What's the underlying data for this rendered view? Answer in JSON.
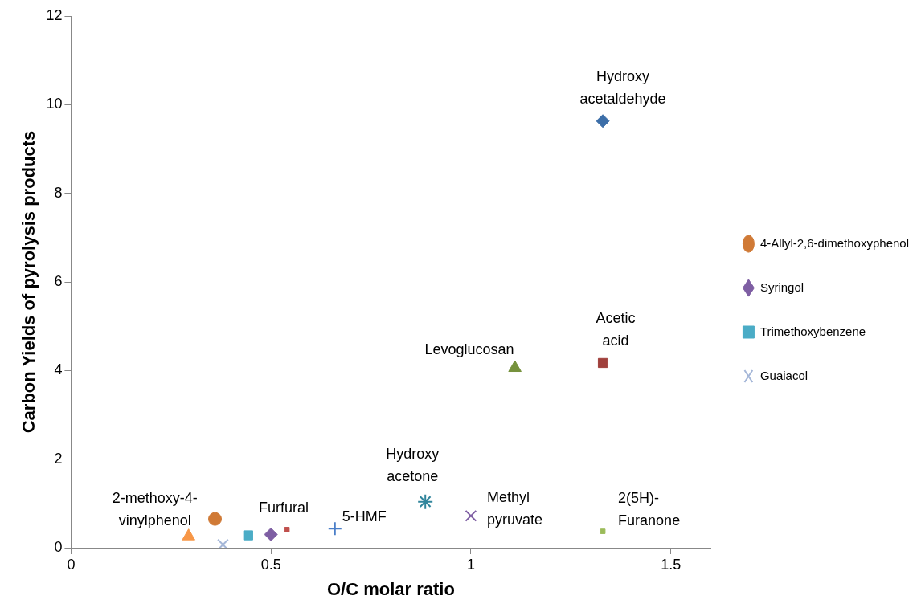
{
  "chart_data": {
    "type": "scatter",
    "xlabel": "O/C molar ratio",
    "ylabel": "Carbon Yields of pyrolysis products",
    "xlim": [
      0,
      1.6
    ],
    "xticks": [
      0,
      0.5,
      1,
      1.5
    ],
    "ylim": [
      0,
      12
    ],
    "yticks": [
      0,
      2,
      4,
      6,
      8,
      10,
      12
    ],
    "grid": false,
    "legend": "right",
    "series": [
      {
        "name": "4-Allyl-2,6-dimethoxyphenol",
        "color": "#d07a36",
        "marker": "circle",
        "x": [
          0.36
        ],
        "values": [
          0.65
        ]
      },
      {
        "name": "Syringol",
        "color": "#7e5ea3",
        "marker": "diamond",
        "x": [
          0.5
        ],
        "values": [
          0.3
        ]
      },
      {
        "name": "Trimethoxybenzene",
        "color": "#4bacc6",
        "marker": "square",
        "x": [
          0.443
        ],
        "values": [
          0.28
        ]
      },
      {
        "name": "Guaiacol",
        "color": "#a5b7d8",
        "marker": "cross",
        "x": [
          0.38
        ],
        "values": [
          0.07
        ]
      },
      {
        "color": "#3c6ea8",
        "marker": "diamond",
        "x": [
          1.33
        ],
        "values": [
          9.63
        ]
      },
      {
        "color": "#a0403c",
        "marker": "square",
        "x": [
          1.33
        ],
        "values": [
          4.17
        ]
      },
      {
        "color": "#76923c",
        "marker": "triangle",
        "x": [
          1.11
        ],
        "values": [
          4.06
        ]
      },
      {
        "color": "#31859c",
        "marker": "cross",
        "x": [
          0.886
        ],
        "values": [
          1.04
        ]
      },
      {
        "color": "#7e5ea3",
        "marker": "cross",
        "x": [
          1.0
        ],
        "values": [
          0.72
        ]
      },
      {
        "color": "#9bbb59",
        "marker": "square",
        "x": [
          1.33
        ],
        "values": [
          0.37
        ]
      },
      {
        "color": "#4a7ec8",
        "marker": "plus",
        "x": [
          0.66
        ],
        "values": [
          0.43
        ]
      },
      {
        "color": "#c0504d",
        "marker": "square",
        "x": [
          0.54
        ],
        "values": [
          0.41
        ]
      },
      {
        "color": "#f79646",
        "marker": "triangle",
        "x": [
          0.294
        ],
        "values": [
          0.26
        ]
      }
    ],
    "annotations": [
      {
        "text": "Hydroxy\nacetaldehyde",
        "x": 1.33,
        "y": 9.63
      },
      {
        "text": "Acetic\nacid",
        "x": 1.33,
        "y": 4.17
      },
      {
        "text": "Levoglucosan",
        "x": 1.11,
        "y": 4.06
      },
      {
        "text": "Hydroxy\nacetone",
        "x": 0.886,
        "y": 1.04
      },
      {
        "text": "Methyl\npyruvate",
        "x": 1.0,
        "y": 0.72
      },
      {
        "text": "2(5H)-\nFuranone",
        "x": 1.33,
        "y": 0.37
      },
      {
        "text": "5-HMF",
        "x": 0.66,
        "y": 0.43
      },
      {
        "text": "Furfural",
        "x": 0.54,
        "y": 0.41
      },
      {
        "text": "2-methoxy-4-\nvinylphenol",
        "x": 0.294,
        "y": 0.26
      }
    ]
  }
}
